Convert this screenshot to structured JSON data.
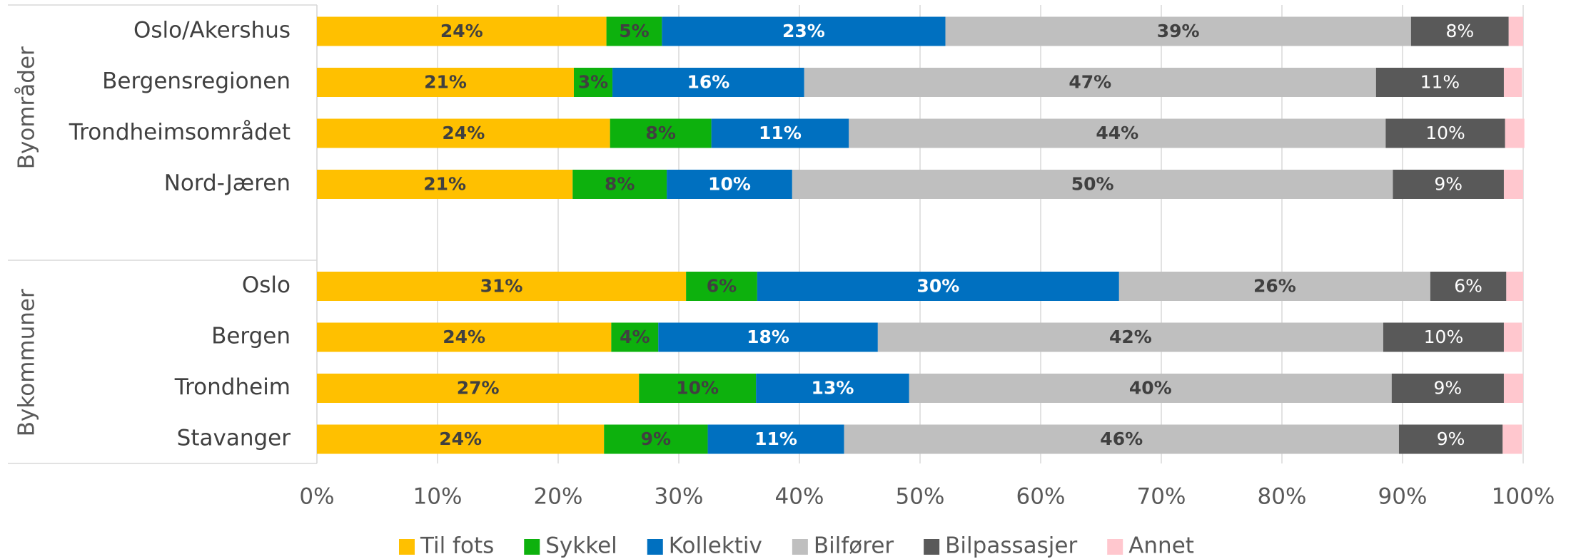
{
  "chart_data": {
    "type": "stacked_barh",
    "categories": [
      "Oslo/Akershus",
      "Bergensregionen",
      "Trondheimsområdet",
      "Nord-Jæren",
      "Oslo",
      "Bergen",
      "Trondheim",
      "Stavanger"
    ],
    "groups": [
      {
        "label": "Byområder",
        "size": 4
      },
      {
        "label": "Bykommuner",
        "size": 4
      }
    ],
    "series": [
      {
        "name": "Til fots",
        "color": "#FFC000",
        "label_color": "#404040",
        "label_weight": "bold",
        "values": [
          24.0,
          21.3,
          24.3,
          21.2,
          30.6,
          24.4,
          26.7,
          23.8
        ],
        "value_labels": [
          "24%",
          "21%",
          "24%",
          "21%",
          "31%",
          "24%",
          "27%",
          "24%"
        ]
      },
      {
        "name": "Sykkel",
        "color": "#0DB10D",
        "label_color": "#404040",
        "label_weight": "bold",
        "values": [
          4.6,
          3.2,
          8.4,
          7.8,
          5.9,
          3.9,
          9.7,
          8.6
        ],
        "value_labels": [
          "5%",
          "3%",
          "8%",
          "8%",
          "6%",
          "4%",
          "10%",
          "9%"
        ]
      },
      {
        "name": "Kollektiv",
        "color": "#0070C0",
        "label_color": "#ffffff",
        "label_weight": "bold",
        "values": [
          23.5,
          15.9,
          11.4,
          10.4,
          30.0,
          18.2,
          12.7,
          11.3
        ],
        "value_labels": [
          "23%",
          "16%",
          "11%",
          "10%",
          "30%",
          "18%",
          "13%",
          "11%"
        ]
      },
      {
        "name": "Bilfører",
        "color": "#BFBFBF",
        "label_color": "#404040",
        "label_weight": "bold",
        "values": [
          38.6,
          47.4,
          44.5,
          49.8,
          25.8,
          41.9,
          40.0,
          46.0
        ],
        "value_labels": [
          "39%",
          "47%",
          "44%",
          "50%",
          "26%",
          "42%",
          "40%",
          "46%"
        ]
      },
      {
        "name": "Bilpassasjer",
        "color": "#595959",
        "label_color": "#ffffff",
        "label_weight": "normal",
        "values": [
          8.1,
          10.6,
          9.9,
          9.2,
          6.3,
          10.0,
          9.3,
          8.6
        ],
        "value_labels": [
          "8%",
          "11%",
          "10%",
          "9%",
          "6%",
          "10%",
          "9%",
          "9%"
        ]
      },
      {
        "name": "Annet",
        "color": "#FFC7CE",
        "values": [
          1.2,
          1.5,
          1.6,
          1.6,
          1.4,
          1.5,
          1.6,
          1.6
        ]
      }
    ],
    "xlim": [
      0,
      100
    ],
    "xticks": [
      {
        "value": 0,
        "label": "0%"
      },
      {
        "value": 10,
        "label": "10%"
      },
      {
        "value": 20,
        "label": "20%"
      },
      {
        "value": 30,
        "label": "30%"
      },
      {
        "value": 40,
        "label": "40%"
      },
      {
        "value": 50,
        "label": "50%"
      },
      {
        "value": 60,
        "label": "60%"
      },
      {
        "value": 70,
        "label": "70%"
      },
      {
        "value": 80,
        "label": "80%"
      },
      {
        "value": 90,
        "label": "90%"
      },
      {
        "value": 100,
        "label": "100%"
      }
    ],
    "grid": true,
    "legend": "bottom"
  }
}
